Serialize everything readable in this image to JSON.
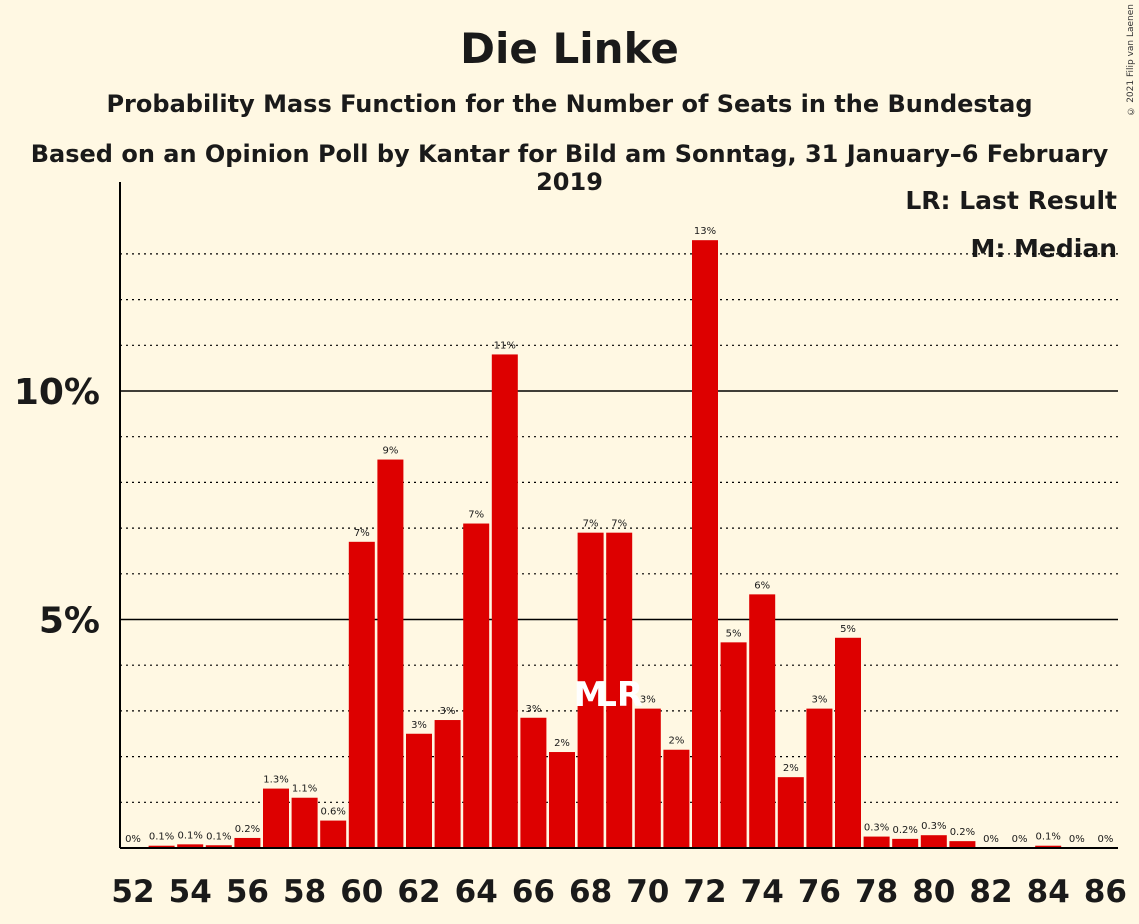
{
  "chart_data": {
    "type": "bar",
    "title": "Die Linke",
    "subtitle": "Probability Mass Function for the Number of Seats in the Bundestag",
    "subtitle2": "Based on an Opinion Poll by Kantar for Bild am Sonntag, 31 January–6 February 2019",
    "copyright": "© 2021 Filip van Laenen",
    "legend": {
      "lr": "LR: Last Result",
      "m": "M: Median",
      "placement": "top-right"
    },
    "ylabels": [
      {
        "v": 5,
        "t": "5%"
      },
      {
        "v": 10,
        "t": "10%"
      }
    ],
    "ylim": [
      0,
      14.5
    ],
    "grid": true,
    "bar_color": "#dd0000",
    "x": [
      52,
      53,
      54,
      55,
      56,
      57,
      58,
      59,
      60,
      61,
      62,
      63,
      64,
      65,
      66,
      67,
      68,
      69,
      70,
      71,
      72,
      73,
      74,
      75,
      76,
      77,
      78,
      79,
      80,
      81,
      82,
      83,
      84,
      85,
      86
    ],
    "values": [
      0,
      0.05,
      0.08,
      0.06,
      0.22,
      1.3,
      1.1,
      0.6,
      6.7,
      8.5,
      2.5,
      2.8,
      7.1,
      10.8,
      2.85,
      2.1,
      6.9,
      6.9,
      3.05,
      2.15,
      13.3,
      4.5,
      5.55,
      1.55,
      3.05,
      4.6,
      0.25,
      0.2,
      0.28,
      0.15,
      0,
      0,
      0.05,
      0,
      0
    ],
    "value_labels": [
      "0%",
      "0.1%",
      "0.1%",
      "0.1%",
      "0.2%",
      "1.3%",
      "1.1%",
      "0.6%",
      "7%",
      "9%",
      "3%",
      "3%",
      "7%",
      "11%",
      "3%",
      "2%",
      "7%",
      "7%",
      "3%",
      "2%",
      "13%",
      "5%",
      "6%",
      "2%",
      "3%",
      "5%",
      "0.3%",
      "0.2%",
      "0.3%",
      "0.2%",
      "0%",
      "0%",
      "0.1%",
      "0%",
      "0%"
    ],
    "xtick_labels": [
      "52",
      "54",
      "56",
      "58",
      "60",
      "62",
      "64",
      "66",
      "68",
      "70",
      "72",
      "74",
      "76",
      "78",
      "80",
      "82",
      "84",
      "86"
    ],
    "markers": [
      {
        "x": 68,
        "label": "M"
      },
      {
        "x": 69,
        "label": "LR"
      }
    ]
  }
}
